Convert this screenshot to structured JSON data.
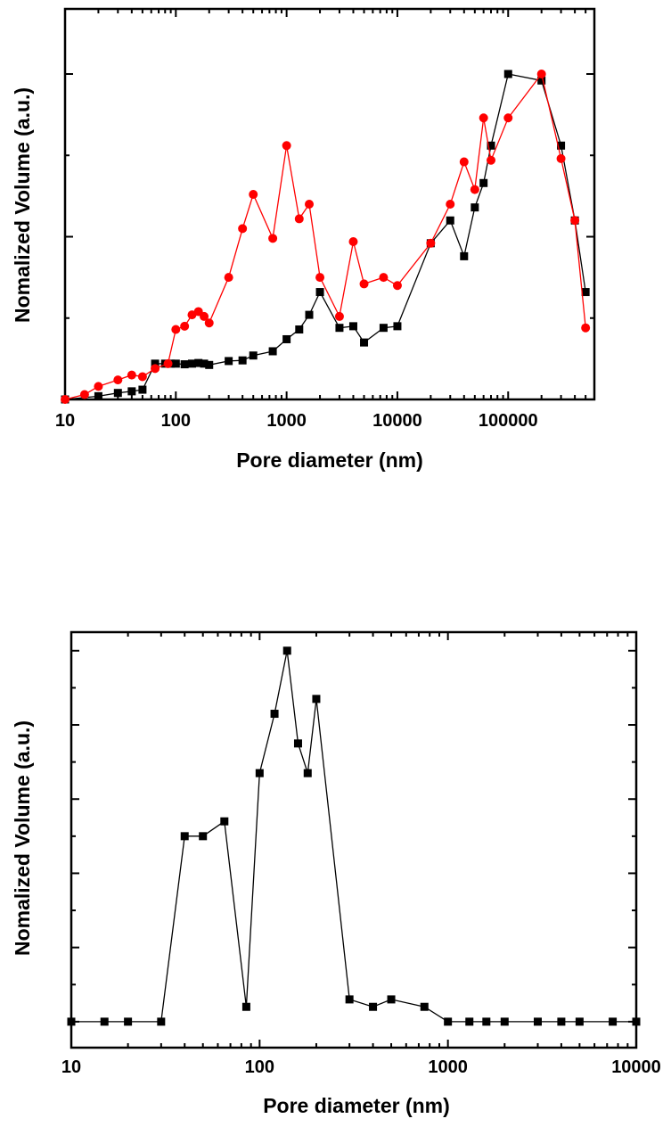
{
  "chart_data": [
    {
      "type": "line",
      "xscale": "log",
      "xlabel": "Pore diameter (nm)",
      "ylabel": "Nomalized Volume (a.u.)",
      "xlim": [
        10,
        600000
      ],
      "ylim": [
        0,
        1.2
      ],
      "x_tick_labels": [
        "10",
        "100",
        "1000",
        "10000",
        "100000"
      ],
      "series": [
        {
          "color": "#000000",
          "marker": "square",
          "points": [
            [
              10,
              0.0
            ],
            [
              20,
              0.01
            ],
            [
              30,
              0.02
            ],
            [
              40,
              0.025
            ],
            [
              50,
              0.03
            ],
            [
              65,
              0.11
            ],
            [
              80,
              0.11
            ],
            [
              90,
              0.11
            ],
            [
              100,
              0.11
            ],
            [
              120,
              0.108
            ],
            [
              140,
              0.11
            ],
            [
              160,
              0.112
            ],
            [
              180,
              0.11
            ],
            [
              200,
              0.106
            ],
            [
              300,
              0.118
            ],
            [
              400,
              0.12
            ],
            [
              500,
              0.135
            ],
            [
              750,
              0.148
            ],
            [
              1000,
              0.185
            ],
            [
              1300,
              0.215
            ],
            [
              1600,
              0.26
            ],
            [
              2000,
              0.33
            ],
            [
              3000,
              0.22
            ],
            [
              4000,
              0.225
            ],
            [
              5000,
              0.175
            ],
            [
              7500,
              0.22
            ],
            [
              10000,
              0.225
            ],
            [
              20000,
              0.48
            ],
            [
              30000,
              0.55
            ],
            [
              40000,
              0.44
            ],
            [
              50000,
              0.59
            ],
            [
              60000,
              0.665
            ],
            [
              70000,
              0.78
            ],
            [
              100000,
              1.0
            ],
            [
              200000,
              0.98
            ],
            [
              300000,
              0.78
            ],
            [
              400000,
              0.55
            ],
            [
              500000,
              0.33
            ]
          ]
        },
        {
          "color": "#ff0000",
          "marker": "circle",
          "points": [
            [
              10,
              0.0
            ],
            [
              15,
              0.015
            ],
            [
              20,
              0.04
            ],
            [
              30,
              0.06
            ],
            [
              40,
              0.075
            ],
            [
              50,
              0.07
            ],
            [
              65,
              0.095
            ],
            [
              85,
              0.11
            ],
            [
              100,
              0.215
            ],
            [
              120,
              0.225
            ],
            [
              140,
              0.26
            ],
            [
              160,
              0.27
            ],
            [
              180,
              0.255
            ],
            [
              200,
              0.235
            ],
            [
              300,
              0.375
            ],
            [
              400,
              0.525
            ],
            [
              500,
              0.63
            ],
            [
              750,
              0.495
            ],
            [
              1000,
              0.78
            ],
            [
              1300,
              0.555
            ],
            [
              1600,
              0.6
            ],
            [
              2000,
              0.375
            ],
            [
              3000,
              0.255
            ],
            [
              4000,
              0.485
            ],
            [
              5000,
              0.355
            ],
            [
              7500,
              0.375
            ],
            [
              10000,
              0.35
            ],
            [
              20000,
              0.48
            ],
            [
              30000,
              0.6
            ],
            [
              40000,
              0.73
            ],
            [
              50000,
              0.645
            ],
            [
              60000,
              0.865
            ],
            [
              70000,
              0.735
            ],
            [
              100000,
              0.865
            ],
            [
              200000,
              1.0
            ],
            [
              300000,
              0.74
            ],
            [
              400000,
              0.55
            ],
            [
              500000,
              0.22
            ]
          ]
        }
      ]
    },
    {
      "type": "line",
      "xscale": "log",
      "xlabel": "Pore diameter (nm)",
      "ylabel": "Nomalized Volume (a.u.)",
      "xlim": [
        10,
        10000
      ],
      "ylim": [
        -0.07,
        1.05
      ],
      "x_tick_labels": [
        "10",
        "100",
        "1000",
        "10000"
      ],
      "series": [
        {
          "color": "#000000",
          "marker": "square",
          "points": [
            [
              10,
              0.0
            ],
            [
              15,
              0.0
            ],
            [
              20,
              0.0
            ],
            [
              30,
              0.0
            ],
            [
              40,
              0.5
            ],
            [
              50,
              0.5
            ],
            [
              65,
              0.54
            ],
            [
              85,
              0.04
            ],
            [
              100,
              0.67
            ],
            [
              120,
              0.83
            ],
            [
              140,
              1.0
            ],
            [
              160,
              0.75
            ],
            [
              180,
              0.67
            ],
            [
              200,
              0.87
            ],
            [
              300,
              0.06
            ],
            [
              400,
              0.04
            ],
            [
              500,
              0.06
            ],
            [
              750,
              0.04
            ],
            [
              1000,
              0.0
            ],
            [
              1300,
              0.0
            ],
            [
              1600,
              0.0
            ],
            [
              2000,
              0.0
            ],
            [
              3000,
              0.0
            ],
            [
              4000,
              0.0
            ],
            [
              5000,
              0.0
            ],
            [
              7500,
              0.0
            ],
            [
              10000,
              0.0
            ]
          ]
        }
      ]
    }
  ]
}
